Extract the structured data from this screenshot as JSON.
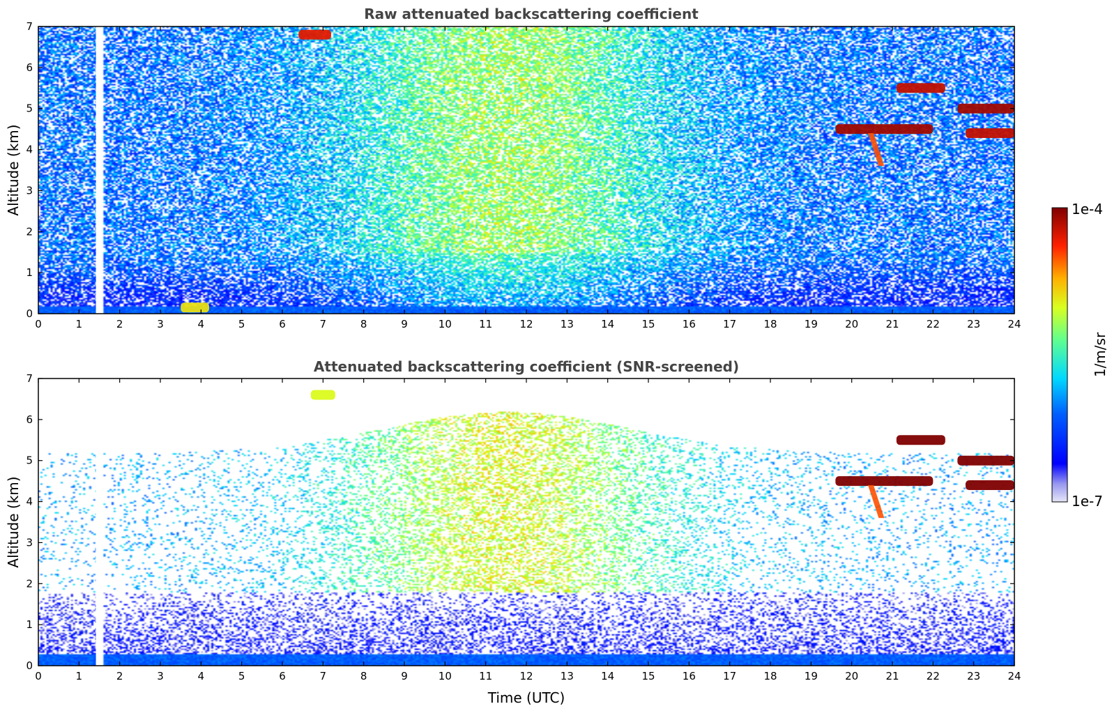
{
  "chart_data": [
    {
      "type": "heatmap",
      "title": "Raw attenuated backscattering coefficient",
      "xlabel": "",
      "ylabel": "Altitude (km)",
      "xlim": [
        0,
        24
      ],
      "ylim": [
        0,
        7
      ],
      "xticks": [
        "0",
        "1",
        "2",
        "3",
        "4",
        "5",
        "6",
        "7",
        "8",
        "9",
        "10",
        "11",
        "12",
        "13",
        "14",
        "15",
        "16",
        "17",
        "18",
        "19",
        "20",
        "21",
        "22",
        "23",
        "24"
      ],
      "yticks": [
        "0",
        "1",
        "2",
        "3",
        "4",
        "5",
        "6",
        "7"
      ],
      "scale": "log",
      "background_noise_log10": {
        "surface_layer_0_to_0.2km": -6.2,
        "low_0.2_to_1.5km": -6.4,
        "upper_night": -6.0,
        "upper_daytime_peak_at_11h": -5.2
      },
      "features": [
        {
          "name": "cloud",
          "time_range": [
            19.6,
            22.0
          ],
          "altitude_km": 4.5,
          "log10_beta": -4.1
        },
        {
          "name": "cloud",
          "time_range": [
            21.1,
            22.3
          ],
          "altitude_km": 5.5,
          "log10_beta": -4.2
        },
        {
          "name": "cloud",
          "time_range": [
            22.6,
            24.0
          ],
          "altitude_km": 5.0,
          "log10_beta": -4.1
        },
        {
          "name": "cloud",
          "time_range": [
            22.8,
            24.0
          ],
          "altitude_km": 4.4,
          "log10_beta": -4.2
        },
        {
          "name": "virga",
          "time_range": [
            20.4,
            20.8
          ],
          "altitude_range_km": [
            3.6,
            4.4
          ],
          "log10_beta": -4.5
        },
        {
          "name": "cloud",
          "time_range": [
            6.4,
            7.2
          ],
          "altitude_km": 6.8,
          "log10_beta": -4.3
        },
        {
          "name": "aerosol",
          "time_range": [
            3.5,
            4.2
          ],
          "altitude_km": 0.15,
          "log10_beta": -4.9
        }
      ],
      "data_gaps_hours": [
        1.45,
        1.5,
        1.55
      ]
    },
    {
      "type": "heatmap",
      "title": "Attenuated backscattering coefficient (SNR-screened)",
      "xlabel": "Time (UTC)",
      "ylabel": "Altitude (km)",
      "xlim": [
        0,
        24
      ],
      "ylim": [
        0,
        7
      ],
      "xticks": [
        "0",
        "1",
        "2",
        "3",
        "4",
        "5",
        "6",
        "7",
        "8",
        "9",
        "10",
        "11",
        "12",
        "13",
        "14",
        "15",
        "16",
        "17",
        "18",
        "19",
        "20",
        "21",
        "22",
        "23",
        "24"
      ],
      "yticks": [
        "0",
        "1",
        "2",
        "3",
        "4",
        "5",
        "6",
        "7"
      ],
      "scale": "log",
      "screening": "low-SNR pixels removed",
      "features": [
        {
          "name": "cloud",
          "time_range": [
            19.6,
            22.0
          ],
          "altitude_km": 4.5,
          "log10_beta": -3.9
        },
        {
          "name": "cloud",
          "time_range": [
            21.1,
            22.3
          ],
          "altitude_km": 5.5,
          "log10_beta": -4.0
        },
        {
          "name": "cloud",
          "time_range": [
            22.6,
            24.0
          ],
          "altitude_km": 5.0,
          "log10_beta": -3.9
        },
        {
          "name": "cloud",
          "time_range": [
            22.8,
            24.0
          ],
          "altitude_km": 4.4,
          "log10_beta": -4.0
        },
        {
          "name": "virga",
          "time_range": [
            20.4,
            20.8
          ],
          "altitude_range_km": [
            3.6,
            4.4
          ],
          "log10_beta": -4.5
        },
        {
          "name": "cloud",
          "time_range": [
            6.7,
            7.3
          ],
          "altitude_km": 6.6,
          "log10_beta": -5.0
        }
      ],
      "data_gaps_hours": [
        1.45,
        1.5,
        1.55
      ]
    }
  ],
  "colorbar": {
    "max_label": "1e-4",
    "min_label": "1e-7",
    "unit_label": "1/m/sr",
    "colormap": "jet",
    "min_color": "#e6e6f8",
    "max_color": "#800000"
  }
}
